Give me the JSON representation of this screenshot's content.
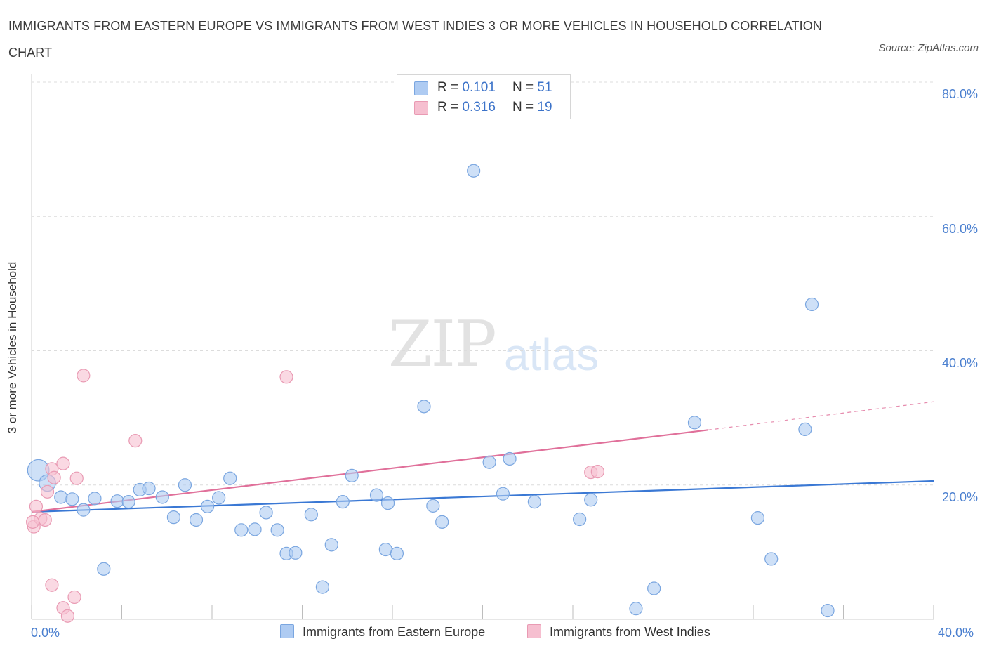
{
  "header": {
    "title": "IMMIGRANTS FROM EASTERN EUROPE VS IMMIGRANTS FROM WEST INDIES 3 OR MORE VEHICLES IN HOUSEHOLD CORRELATION CHART",
    "source": "Source: ZipAtlas.com"
  },
  "watermark": {
    "zip": "ZIP",
    "atlas": "atlas"
  },
  "legend": {
    "series1": {
      "r_label": "R = ",
      "r_value": "0.101",
      "n_label": "N = ",
      "n_value": "51"
    },
    "series2": {
      "r_label": "R = ",
      "r_value": "0.316",
      "n_label": "N = ",
      "n_value": "19"
    }
  },
  "colors": {
    "blue_fill": "#aecbf2",
    "blue_stroke": "#7aa6e0",
    "blue_line": "#3a78d4",
    "pink_fill": "#f6bfd0",
    "pink_stroke": "#e99ab3",
    "pink_line": "#e0709a",
    "grid": "#dcdcdc",
    "tick_text": "#4a7fcf"
  },
  "chart_data": {
    "type": "scatter",
    "title": "IMMIGRANTS FROM EASTERN EUROPE VS IMMIGRANTS FROM WEST INDIES 3 OR MORE VEHICLES IN HOUSEHOLD CORRELATION CHART",
    "xlabel": "",
    "ylabel": "3 or more Vehicles in Household",
    "xlim": [
      0,
      40
    ],
    "ylim": [
      0,
      80
    ],
    "x_ticks": [
      "0.0%",
      "40.0%"
    ],
    "y_ticks": [
      "20.0%",
      "40.0%",
      "60.0%",
      "80.0%"
    ],
    "y_tick_values": [
      20,
      40,
      60,
      80
    ],
    "grid": true,
    "legend_position": "top-center",
    "series": [
      {
        "name": "Immigrants from Eastern Europe",
        "color": "#aecbf2",
        "trend": {
          "x": [
            0,
            40
          ],
          "y": [
            16.0,
            20.6
          ]
        },
        "points": [
          {
            "x": 0.3,
            "y": 22.2,
            "s": 1.7
          },
          {
            "x": 0.7,
            "y": 20.3,
            "s": 1.3
          },
          {
            "x": 1.3,
            "y": 18.2,
            "s": 1.0
          },
          {
            "x": 1.8,
            "y": 17.9,
            "s": 1.0
          },
          {
            "x": 2.3,
            "y": 16.3,
            "s": 1.0
          },
          {
            "x": 2.8,
            "y": 18.0,
            "s": 1.0
          },
          {
            "x": 3.2,
            "y": 7.5,
            "s": 1.0
          },
          {
            "x": 3.8,
            "y": 17.6,
            "s": 1.0
          },
          {
            "x": 4.3,
            "y": 17.5,
            "s": 1.0
          },
          {
            "x": 4.8,
            "y": 19.3,
            "s": 1.0
          },
          {
            "x": 5.2,
            "y": 19.5,
            "s": 1.0
          },
          {
            "x": 5.8,
            "y": 18.2,
            "s": 1.0
          },
          {
            "x": 6.3,
            "y": 15.2,
            "s": 1.0
          },
          {
            "x": 6.8,
            "y": 20.0,
            "s": 1.0
          },
          {
            "x": 7.3,
            "y": 14.8,
            "s": 1.0
          },
          {
            "x": 7.8,
            "y": 16.8,
            "s": 1.0
          },
          {
            "x": 8.3,
            "y": 18.1,
            "s": 1.0
          },
          {
            "x": 8.8,
            "y": 21.0,
            "s": 1.0
          },
          {
            "x": 9.3,
            "y": 13.3,
            "s": 1.0
          },
          {
            "x": 9.9,
            "y": 13.4,
            "s": 1.0
          },
          {
            "x": 10.4,
            "y": 15.9,
            "s": 1.0
          },
          {
            "x": 10.9,
            "y": 13.3,
            "s": 1.0
          },
          {
            "x": 11.3,
            "y": 9.8,
            "s": 1.0
          },
          {
            "x": 11.7,
            "y": 9.9,
            "s": 1.0
          },
          {
            "x": 12.4,
            "y": 15.6,
            "s": 1.0
          },
          {
            "x": 12.9,
            "y": 4.8,
            "s": 1.0
          },
          {
            "x": 13.3,
            "y": 11.1,
            "s": 1.0
          },
          {
            "x": 13.8,
            "y": 17.5,
            "s": 1.0
          },
          {
            "x": 14.2,
            "y": 21.4,
            "s": 1.0
          },
          {
            "x": 15.3,
            "y": 18.5,
            "s": 1.0
          },
          {
            "x": 15.7,
            "y": 10.4,
            "s": 1.0
          },
          {
            "x": 15.8,
            "y": 17.3,
            "s": 1.0
          },
          {
            "x": 16.2,
            "y": 9.8,
            "s": 1.0
          },
          {
            "x": 17.4,
            "y": 31.7,
            "s": 1.0
          },
          {
            "x": 17.8,
            "y": 16.9,
            "s": 1.0
          },
          {
            "x": 18.2,
            "y": 14.5,
            "s": 1.0
          },
          {
            "x": 19.6,
            "y": 66.8,
            "s": 1.0
          },
          {
            "x": 20.3,
            "y": 23.4,
            "s": 1.0
          },
          {
            "x": 20.9,
            "y": 18.7,
            "s": 1.0
          },
          {
            "x": 21.2,
            "y": 23.9,
            "s": 1.0
          },
          {
            "x": 22.3,
            "y": 17.5,
            "s": 1.0
          },
          {
            "x": 24.3,
            "y": 14.9,
            "s": 1.0
          },
          {
            "x": 24.8,
            "y": 17.8,
            "s": 1.0
          },
          {
            "x": 26.8,
            "y": 1.6,
            "s": 1.0
          },
          {
            "x": 27.6,
            "y": 4.6,
            "s": 1.0
          },
          {
            "x": 29.4,
            "y": 29.3,
            "s": 1.0
          },
          {
            "x": 32.2,
            "y": 15.1,
            "s": 1.0
          },
          {
            "x": 32.8,
            "y": 9.0,
            "s": 1.0
          },
          {
            "x": 34.3,
            "y": 28.3,
            "s": 1.0
          },
          {
            "x": 34.6,
            "y": 46.9,
            "s": 1.0
          },
          {
            "x": 35.3,
            "y": 1.3,
            "s": 1.0
          }
        ]
      },
      {
        "name": "Immigrants from West Indies",
        "color": "#f6bfd0",
        "trend": {
          "x": [
            0,
            30
          ],
          "y": [
            16.0,
            28.2
          ]
        },
        "trend_extension": {
          "x": [
            30,
            40
          ],
          "y": [
            28.2,
            32.4
          ]
        },
        "points": [
          {
            "x": 0.1,
            "y": 13.8,
            "s": 1.0
          },
          {
            "x": 0.2,
            "y": 16.8,
            "s": 1.0
          },
          {
            "x": 0.4,
            "y": 15.0,
            "s": 1.0
          },
          {
            "x": 0.6,
            "y": 14.8,
            "s": 1.0
          },
          {
            "x": 0.7,
            "y": 19.0,
            "s": 1.0
          },
          {
            "x": 0.9,
            "y": 22.4,
            "s": 1.0
          },
          {
            "x": 1.0,
            "y": 21.1,
            "s": 1.0
          },
          {
            "x": 0.9,
            "y": 5.1,
            "s": 1.0
          },
          {
            "x": 1.4,
            "y": 23.2,
            "s": 1.0
          },
          {
            "x": 1.4,
            "y": 1.7,
            "s": 1.0
          },
          {
            "x": 1.6,
            "y": 0.5,
            "s": 1.0
          },
          {
            "x": 1.9,
            "y": 3.3,
            "s": 1.0
          },
          {
            "x": 2.0,
            "y": 21.0,
            "s": 1.0
          },
          {
            "x": 2.3,
            "y": 36.3,
            "s": 1.0
          },
          {
            "x": 4.6,
            "y": 26.6,
            "s": 1.0
          },
          {
            "x": 11.3,
            "y": 36.1,
            "s": 1.0
          },
          {
            "x": 24.8,
            "y": 21.9,
            "s": 1.0
          },
          {
            "x": 25.1,
            "y": 22.0,
            "s": 1.0
          },
          {
            "x": 0.05,
            "y": 14.5,
            "s": 1.0
          }
        ]
      }
    ]
  },
  "bottom_legend": {
    "series1": "Immigrants from Eastern Europe",
    "series2": "Immigrants from West Indies"
  }
}
